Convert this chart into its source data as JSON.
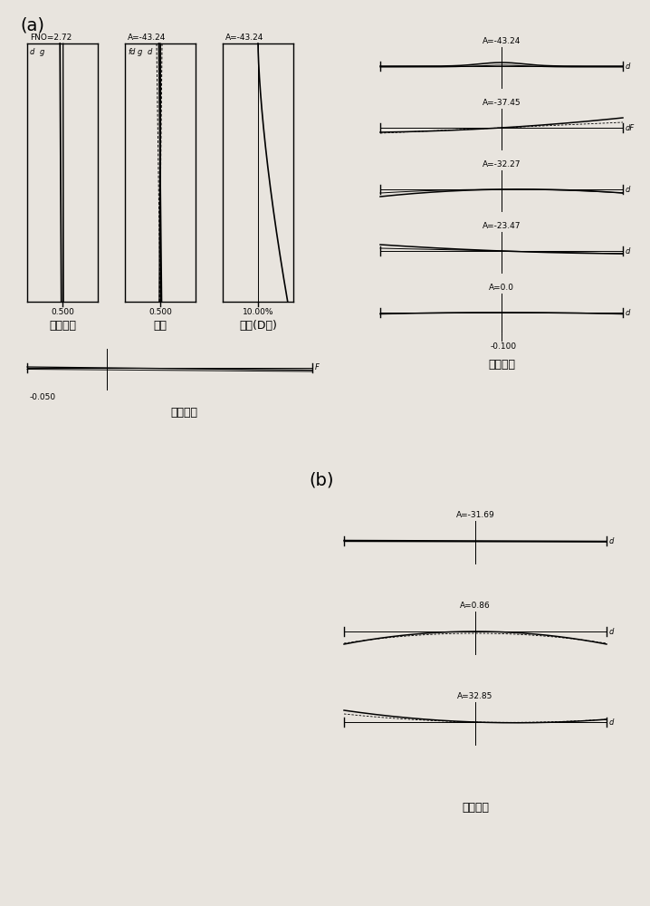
{
  "bg_color": "#e8e4de",
  "title_a": "(a)",
  "title_b": "(b)",
  "panel_a": {
    "sa_label": "FNO=2.72",
    "sa_sublabels": [
      "d",
      "g"
    ],
    "sa_xlabel": "0.500",
    "sa_title": "球面像差",
    "ast_label": "A=-43.24",
    "ast_sublabels": [
      "fd",
      "g",
      "d"
    ],
    "ast_xlabel": "0.500",
    "ast_title": "像散",
    "dis_label": "A=-43.24",
    "dis_xlabel": "10.00%",
    "dis_title": "畚变(D线)",
    "lc_xlabel": "-0.050",
    "lc_title": "倍率色差",
    "ta_angles": [
      "A=-43.24",
      "A=-37.45",
      "A=-32.27",
      "A=-23.47",
      "A=0.0"
    ],
    "ta_xlabel": "-0.100",
    "ta_title": "横向像差"
  },
  "panel_b": {
    "ta_angles": [
      "A=-31.69",
      "A=0.86",
      "A=32.85"
    ],
    "ta_title": "横向像差"
  }
}
